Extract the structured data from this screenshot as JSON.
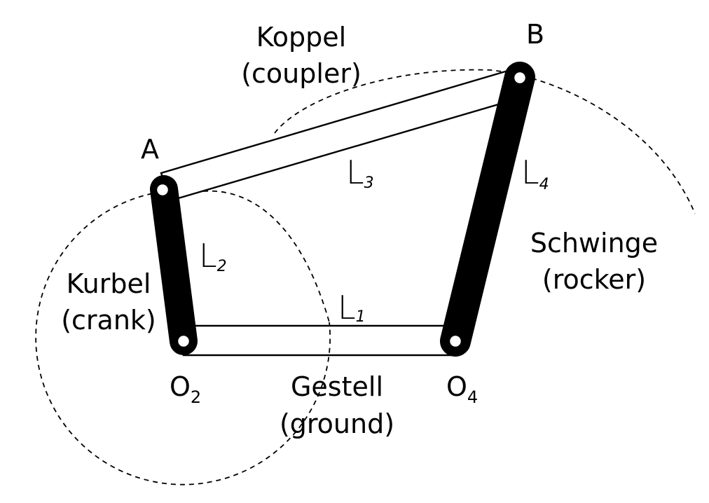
{
  "joints": {
    "A": "A",
    "B": "B",
    "O2": {
      "main": "O",
      "sub": "2"
    },
    "O4": {
      "main": "O",
      "sub": "4"
    }
  },
  "links": {
    "coupler": {
      "line1": "Koppel",
      "line2": "(coupler)",
      "length": {
        "main": "L",
        "sub": "3"
      }
    },
    "crank": {
      "line1": "Kurbel",
      "line2": "(crank)",
      "length": {
        "main": "L",
        "sub": "2"
      }
    },
    "rocker": {
      "line1": "Schwinge",
      "line2": "(rocker)",
      "length": {
        "main": "L",
        "sub": "4"
      }
    },
    "ground": {
      "line1": "Gestell",
      "line2": "(ground)",
      "length": {
        "main": "L",
        "sub": "1"
      }
    }
  }
}
